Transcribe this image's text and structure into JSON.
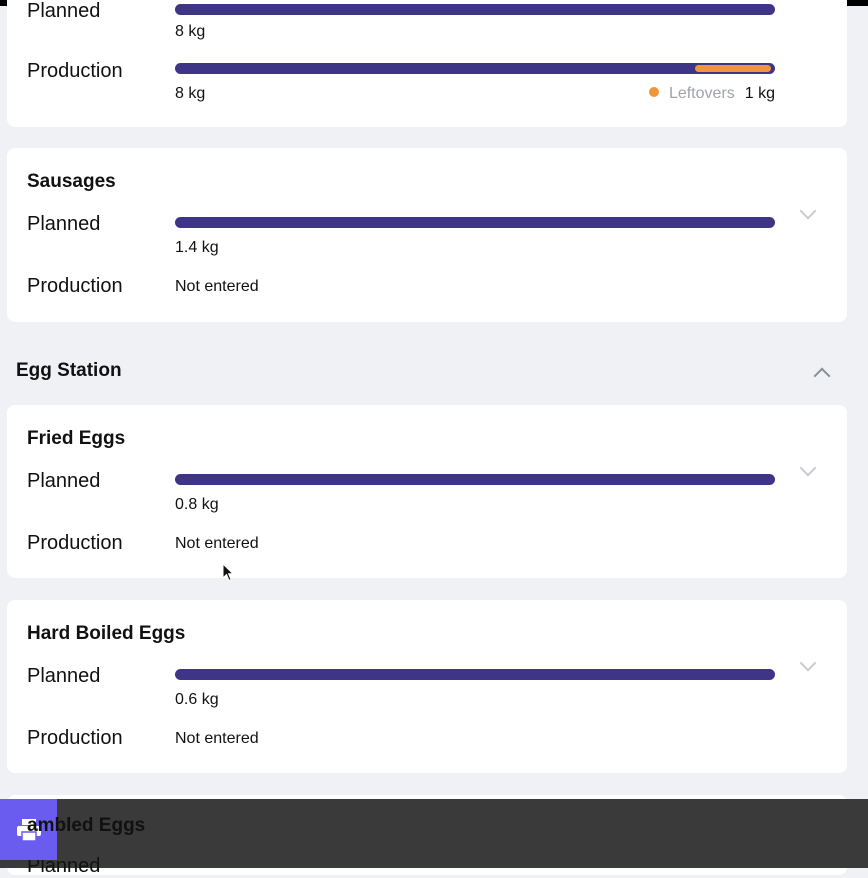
{
  "top_card": {
    "planned_label": "Planned",
    "planned_qty": "8 kg",
    "planned_fill": 1.0,
    "production_label": "Production",
    "production_qty": "8 kg",
    "production_fill": 1.0,
    "leftovers_label": "Leftovers",
    "leftovers_qty": "1 kg"
  },
  "sausages": {
    "title": "Sausages",
    "planned_label": "Planned",
    "planned_qty": "1.4 kg",
    "production_label": "Production",
    "production_value": "Not entered"
  },
  "egg_station": {
    "title": "Egg Station",
    "items": [
      {
        "title": "Fried Eggs",
        "planned_label": "Planned",
        "planned_qty": "0.8 kg",
        "production_label": "Production",
        "production_value": "Not entered"
      },
      {
        "title": "Hard Boiled Eggs",
        "planned_label": "Planned",
        "planned_qty": "0.6 kg",
        "production_label": "Production",
        "production_value": "Not entered"
      }
    ]
  },
  "partial_card": {
    "title": "ambled Eggs",
    "planned_label": "Planned"
  },
  "colors": {
    "bar": "#3f3587",
    "leftovers": "#f0963a",
    "print_button": "#6b5cf0"
  },
  "icons": {
    "print": "print-icon",
    "expand": "chevron-down-icon",
    "collapse": "chevron-up-icon"
  }
}
